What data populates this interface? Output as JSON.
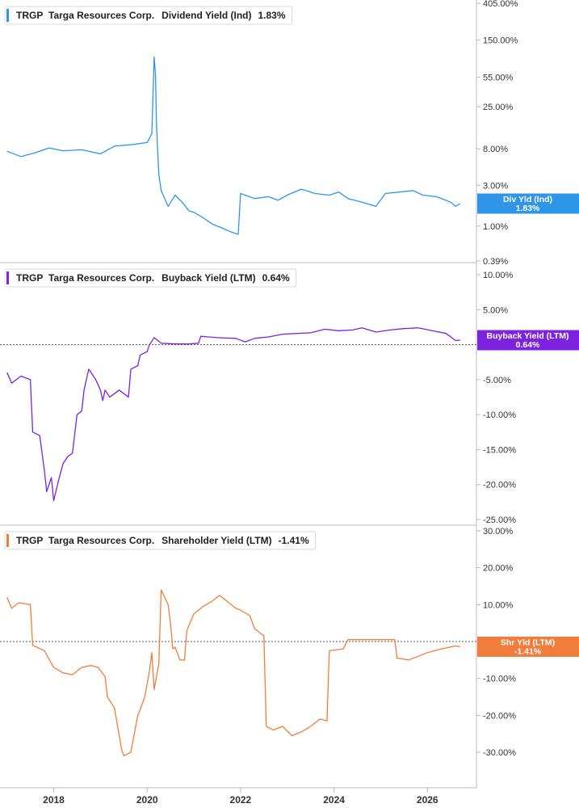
{
  "colors": {
    "dividend": "#2f95e8",
    "buyback": "#7d22e0",
    "shareholder": "#f07d3c",
    "axis": "#bbbbbb",
    "text": "#222222"
  },
  "chart_data": [
    {
      "type": "line",
      "scale": "log",
      "ticker": "TRGP",
      "company": "Targa Resources Corp.",
      "metric": "Dividend Yield (Ind)",
      "last_value_label": "1.83%",
      "tag_label": "Div Yld (Ind)",
      "tag_value": "1.83%",
      "ylim": [
        0.39,
        405
      ],
      "yticks": [
        {
          "value": 405,
          "label": "405.00%"
        },
        {
          "value": 150,
          "label": "150.00%"
        },
        {
          "value": 55,
          "label": "55.00%"
        },
        {
          "value": 25,
          "label": "25.00%"
        },
        {
          "value": 8,
          "label": "8.00%"
        },
        {
          "value": 3,
          "label": "3.00%"
        },
        {
          "value": 1,
          "label": "1.00%"
        },
        {
          "value": 0.39,
          "label": "0.39%"
        }
      ],
      "series": [
        {
          "x": [
            2017.0,
            2017.3,
            2017.6,
            2017.9,
            2018.2,
            2018.6,
            2019.0,
            2019.3,
            2019.7,
            2020.0,
            2020.1,
            2020.15,
            2020.18,
            2020.2,
            2020.25,
            2020.3,
            2020.45,
            2020.6,
            2020.75,
            2020.9,
            2021.0,
            2021.2,
            2021.4,
            2021.6,
            2021.8,
            2021.95,
            2022.0,
            2022.3,
            2022.6,
            2022.8,
            2023.0,
            2023.3,
            2023.6,
            2023.9,
            2024.1,
            2024.3,
            2024.6,
            2024.9,
            2025.1,
            2025.4,
            2025.7,
            2025.9,
            2026.2,
            2026.5,
            2026.6,
            2026.7
          ],
          "y": [
            7.5,
            6.5,
            7.2,
            8.2,
            7.6,
            7.8,
            7.0,
            8.6,
            9.0,
            9.5,
            12.0,
            95.0,
            58.0,
            15.0,
            4.0,
            2.6,
            1.7,
            2.3,
            1.9,
            1.5,
            1.45,
            1.25,
            1.05,
            0.95,
            0.85,
            0.8,
            2.4,
            2.1,
            2.2,
            2.0,
            2.3,
            2.7,
            2.4,
            2.3,
            2.5,
            2.1,
            1.9,
            1.7,
            2.4,
            2.5,
            2.6,
            2.3,
            2.2,
            1.9,
            1.7,
            1.83
          ]
        }
      ]
    },
    {
      "type": "line",
      "scale": "linear",
      "ticker": "TRGP",
      "company": "Targa Resources Corp.",
      "metric": "Buyback Yield (LTM)",
      "last_value_label": "0.64%",
      "tag_label": "Buyback Yield (LTM)",
      "tag_value": "0.64%",
      "ylim": [
        -25,
        10
      ],
      "yticks": [
        {
          "value": 10,
          "label": "10.00%"
        },
        {
          "value": 5,
          "label": "5.00%"
        },
        {
          "value": -5,
          "label": "-5.00%"
        },
        {
          "value": -10,
          "label": "-10.00%"
        },
        {
          "value": -15,
          "label": "-15.00%"
        },
        {
          "value": -20,
          "label": "-20.00%"
        },
        {
          "value": -25,
          "label": "-25.00%"
        }
      ],
      "series": [
        {
          "x": [
            2017.0,
            2017.1,
            2017.3,
            2017.5,
            2017.55,
            2017.7,
            2017.8,
            2017.85,
            2017.95,
            2018.0,
            2018.1,
            2018.2,
            2018.3,
            2018.4,
            2018.5,
            2018.6,
            2018.65,
            2018.75,
            2018.9,
            2019.0,
            2019.05,
            2019.1,
            2019.2,
            2019.3,
            2019.4,
            2019.6,
            2019.65,
            2019.8,
            2019.85,
            2020.0,
            2020.05,
            2020.15,
            2020.3,
            2020.6,
            2020.9,
            2021.1,
            2021.15,
            2021.5,
            2021.9,
            2022.1,
            2022.3,
            2022.6,
            2022.9,
            2023.2,
            2023.5,
            2023.8,
            2024.1,
            2024.4,
            2024.6,
            2024.9,
            2025.2,
            2025.5,
            2025.8,
            2026.1,
            2026.4,
            2026.6,
            2026.7
          ],
          "y": [
            -4.0,
            -5.5,
            -4.5,
            -5.0,
            -12.5,
            -13.0,
            -18.0,
            -21.0,
            -19.0,
            -22.3,
            -19.5,
            -17.0,
            -16.0,
            -15.5,
            -10.0,
            -9.5,
            -6.5,
            -3.5,
            -5.0,
            -6.5,
            -8.0,
            -6.5,
            -7.5,
            -7.0,
            -6.5,
            -7.5,
            -3.5,
            -3.0,
            -1.5,
            -1.0,
            0.0,
            1.0,
            0.2,
            0.1,
            0.1,
            0.2,
            1.2,
            1.0,
            0.9,
            0.4,
            0.9,
            1.1,
            1.5,
            1.6,
            1.7,
            2.2,
            2.0,
            2.1,
            2.4,
            1.8,
            2.1,
            2.3,
            2.4,
            2.0,
            1.6,
            0.6,
            0.64
          ]
        }
      ]
    },
    {
      "type": "line",
      "scale": "linear",
      "ticker": "TRGP",
      "company": "Targa Resources Corp.",
      "metric": "Shareholder Yield (LTM)",
      "last_value_label": "-1.41%",
      "tag_label": "Shr Yld (LTM)",
      "tag_value": "-1.41%",
      "ylim": [
        -35,
        30
      ],
      "yticks": [
        {
          "value": 30,
          "label": "30.00%"
        },
        {
          "value": 20,
          "label": "20.00%"
        },
        {
          "value": 10,
          "label": "10.00%"
        },
        {
          "value": -10,
          "label": "-10.00%"
        },
        {
          "value": -20,
          "label": "-20.00%"
        },
        {
          "value": -30,
          "label": "-30.00%"
        }
      ],
      "xticks": [
        "2018",
        "2020",
        "2022",
        "2024",
        "2026"
      ],
      "xtick_values": [
        2018,
        2020,
        2022,
        2024,
        2026
      ],
      "xlim": [
        2016.85,
        2027.05
      ],
      "series": [
        {
          "x": [
            2017.0,
            2017.1,
            2017.25,
            2017.5,
            2017.55,
            2017.8,
            2018.0,
            2018.2,
            2018.4,
            2018.6,
            2018.8,
            2018.95,
            2019.1,
            2019.15,
            2019.3,
            2019.45,
            2019.5,
            2019.65,
            2019.8,
            2019.85,
            2019.95,
            2020.05,
            2020.1,
            2020.15,
            2020.25,
            2020.3,
            2020.45,
            2020.5,
            2020.55,
            2020.6,
            2020.7,
            2020.8,
            2020.85,
            2021.0,
            2021.2,
            2021.4,
            2021.55,
            2021.7,
            2021.9,
            2022.0,
            2022.2,
            2022.3,
            2022.5,
            2022.55,
            2022.7,
            2022.9,
            2023.1,
            2023.3,
            2023.5,
            2023.7,
            2023.85,
            2023.9,
            2024.2,
            2024.3,
            2024.5,
            2024.8,
            2025.0,
            2025.3,
            2025.35,
            2025.6,
            2025.8,
            2026.0,
            2026.3,
            2026.6,
            2026.7
          ],
          "y": [
            12.0,
            9.0,
            10.5,
            10.0,
            -1.0,
            -2.5,
            -7.0,
            -8.5,
            -9.0,
            -7.0,
            -6.5,
            -7.0,
            -9.5,
            -15.0,
            -18.0,
            -29.0,
            -31.0,
            -30.0,
            -20.0,
            -18.5,
            -15.0,
            -8.0,
            -3.0,
            -13.0,
            -6.0,
            14.0,
            10.0,
            5.0,
            -2.0,
            -1.5,
            -5.0,
            -5.0,
            3.0,
            7.5,
            9.5,
            11.0,
            12.5,
            11.0,
            9.0,
            8.5,
            7.0,
            3.5,
            1.5,
            -23.0,
            -24.0,
            -23.0,
            -25.5,
            -24.5,
            -23.0,
            -21.0,
            -21.5,
            -2.5,
            -2.0,
            0.5,
            0.5,
            0.5,
            0.5,
            0.5,
            -4.5,
            -5.0,
            -4.0,
            -3.0,
            -2.0,
            -1.2,
            -1.41
          ]
        }
      ]
    }
  ]
}
